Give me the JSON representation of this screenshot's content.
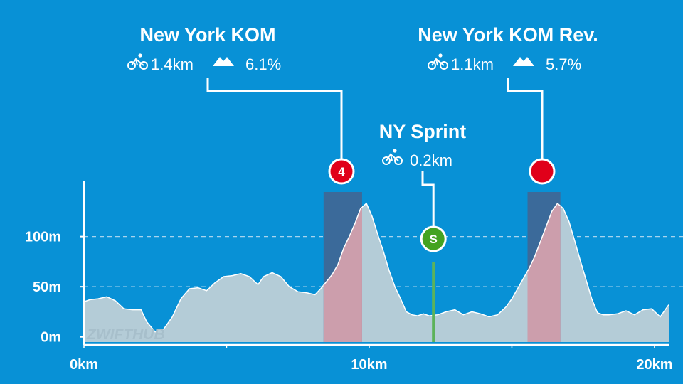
{
  "chart_data": {
    "type": "area",
    "xlabel": "",
    "ylabel": "",
    "xlim": [
      0,
      20.5
    ],
    "ylim": [
      -8,
      155
    ],
    "x_ticks": [
      {
        "value": 0,
        "label": "0km"
      },
      {
        "value": 10,
        "label": "10km"
      },
      {
        "value": 20,
        "label": "20km"
      }
    ],
    "y_ticks": [
      {
        "value": 0,
        "label": "0m"
      },
      {
        "value": 50,
        "label": "50m"
      },
      {
        "value": 100,
        "label": "100m"
      }
    ],
    "grid": "dashed horizontal",
    "series": [
      {
        "x": [
          0,
          0.2,
          0.5,
          0.8,
          1.1,
          1.4,
          1.7,
          2.0,
          2.2,
          2.5,
          2.8,
          3.1,
          3.4,
          3.7,
          4.0,
          4.3,
          4.6,
          4.9,
          5.2,
          5.5,
          5.8,
          6.1,
          6.3,
          6.6,
          6.9,
          7.2,
          7.5,
          7.8,
          8.1,
          8.3,
          8.5,
          8.7,
          8.9,
          9.1,
          9.3,
          9.5,
          9.7,
          9.9,
          10.1,
          10.3,
          10.5,
          10.7,
          10.9,
          11.1,
          11.3,
          11.5,
          11.7,
          11.9,
          12.1,
          12.4,
          12.7,
          13.0,
          13.3,
          13.6,
          13.9,
          14.2,
          14.5,
          14.8,
          15.0,
          15.2,
          15.4,
          15.6,
          15.8,
          16.0,
          16.2,
          16.4,
          16.6,
          16.8,
          17.0,
          17.2,
          17.4,
          17.6,
          17.8,
          18.0,
          18.2,
          18.4,
          18.7,
          19.0,
          19.3,
          19.6,
          19.9,
          20.2,
          20.5
        ],
        "y": [
          35,
          37,
          38,
          40,
          36,
          28,
          27,
          27,
          15,
          5,
          8,
          20,
          38,
          48,
          49,
          46,
          54,
          60,
          61,
          63,
          60,
          52,
          60,
          64,
          60,
          50,
          45,
          44,
          42,
          48,
          55,
          62,
          72,
          88,
          100,
          113,
          128,
          133,
          120,
          102,
          85,
          66,
          50,
          38,
          25,
          22,
          21,
          23,
          21,
          22,
          25,
          27,
          22,
          25,
          23,
          20,
          22,
          30,
          38,
          48,
          58,
          68,
          80,
          95,
          110,
          125,
          133,
          128,
          115,
          96,
          76,
          57,
          38,
          24,
          22,
          22,
          23,
          26,
          22,
          27,
          28,
          20,
          32
        ]
      }
    ],
    "segments": [
      {
        "name": "New York KOM",
        "icon": "4",
        "badge_color": "#e0001a",
        "start_km": 8.4,
        "end_km": 9.75,
        "distance": "1.4km",
        "grade": "6.1%"
      },
      {
        "name": "New York KOM Rev.",
        "icon": "",
        "badge_color": "#e0001a",
        "start_km": 15.55,
        "end_km": 16.7,
        "distance": "1.1km",
        "grade": "5.7%"
      }
    ],
    "sprints": [
      {
        "name": "NY Sprint",
        "icon": "S",
        "badge_color": "#44a321",
        "position_km": 12.25,
        "distance": "0.2km"
      }
    ],
    "watermark": "ZWIFTHUB"
  },
  "colors": {
    "background": "#0891d6",
    "profile_fill": "#b4ccd7",
    "climb_band": "#3b6a9a",
    "climb_fill": "#cc9eac",
    "sprint_line": "#5cb25a",
    "guide_line": "#ffffff"
  }
}
